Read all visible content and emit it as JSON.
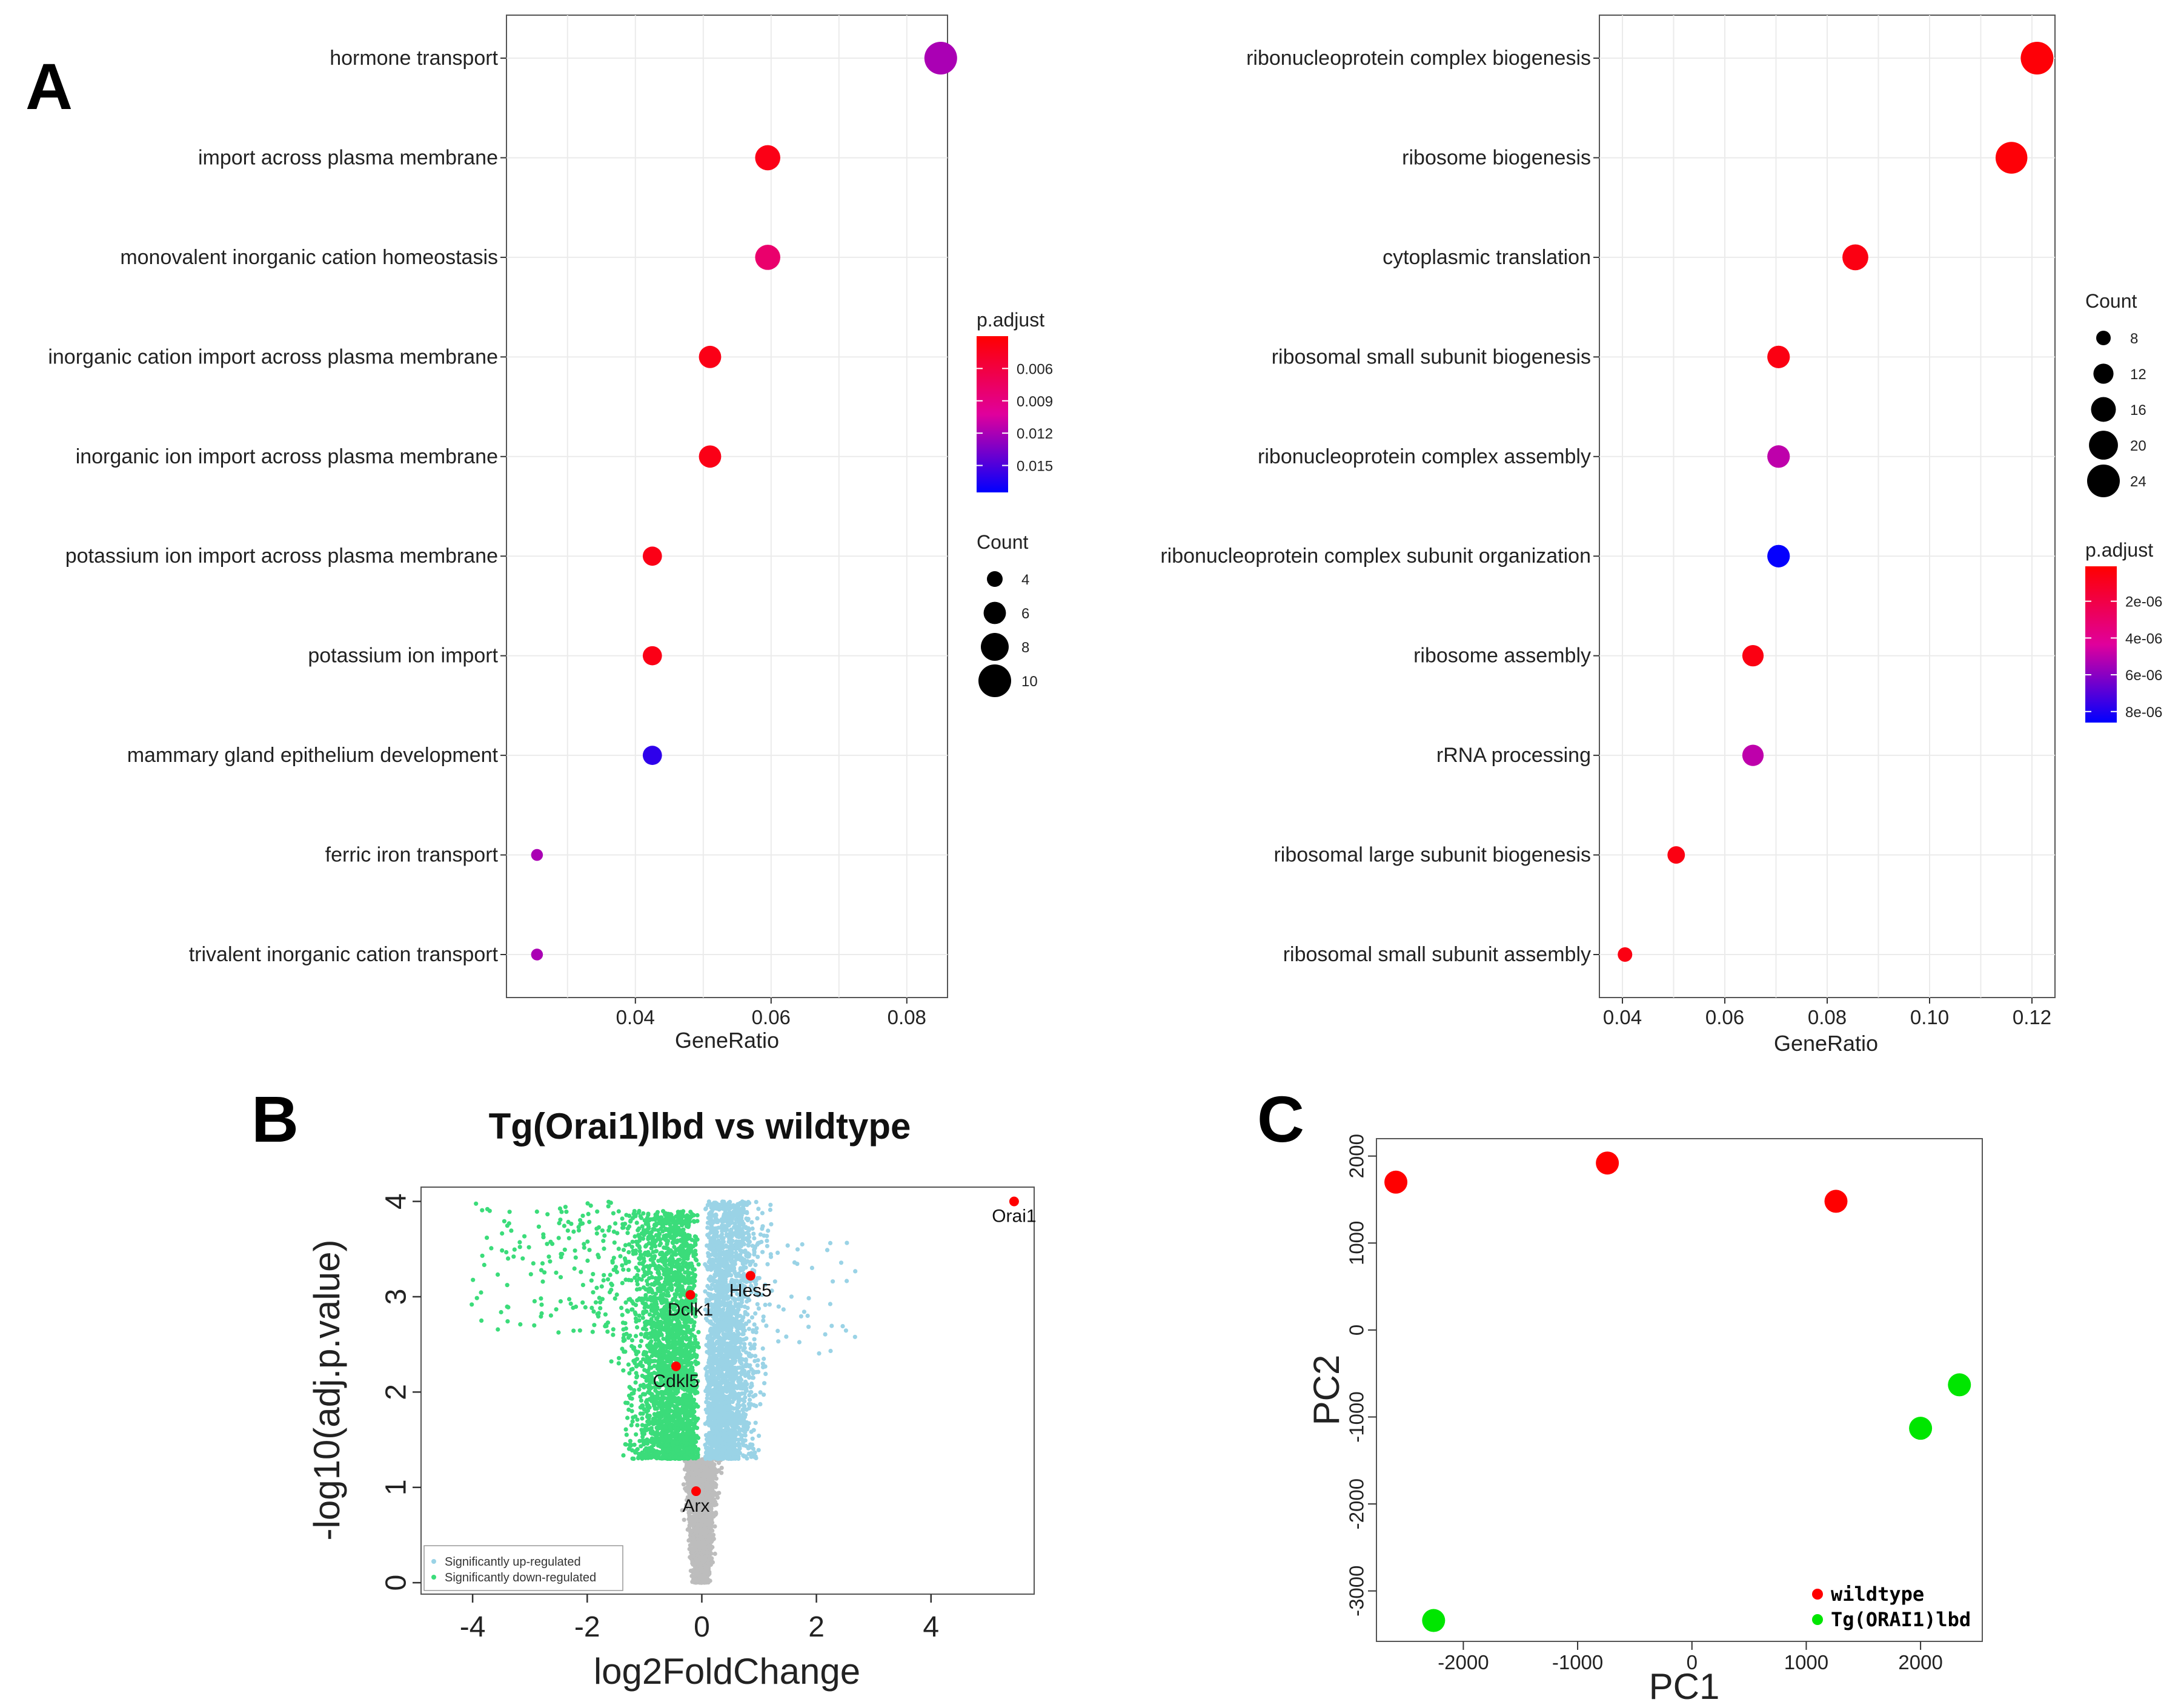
{
  "panels": {
    "A": "A",
    "B": "B",
    "C": "C"
  },
  "colors": {
    "high": "#ff0000",
    "mid": "#e0009c",
    "low": "#0000ff",
    "up": "#9ad3e6",
    "down": "#3bdc7a",
    "ns": "#bdbdbd",
    "wildtype": "#ff0000",
    "tg": "#00e600"
  },
  "chart_data": [
    {
      "type": "scatter",
      "panel": "A-left",
      "xlabel": "GeneRatio",
      "xticks": [
        0.04,
        0.06,
        0.08
      ],
      "xlim": [
        0.021,
        0.086
      ],
      "terms": [
        "hormone transport",
        "import across plasma membrane",
        "monovalent inorganic cation homeostasis",
        "inorganic cation import across plasma membrane",
        "inorganic ion import across plasma membrane",
        "potassium ion import across plasma membrane",
        "potassium ion import",
        "mammary gland epithelium development",
        "ferric iron transport",
        "trivalent inorganic cation transport"
      ],
      "gene_ratio": [
        0.085,
        0.0595,
        0.0595,
        0.051,
        0.051,
        0.0425,
        0.0425,
        0.0425,
        0.0255,
        0.0255
      ],
      "count": [
        10,
        7,
        7,
        6,
        6,
        5,
        5,
        5,
        3,
        3
      ],
      "p_adjust": [
        0.012,
        0.004,
        0.008,
        0.004,
        0.004,
        0.004,
        0.004,
        0.016,
        0.012,
        0.012
      ],
      "legend": {
        "p_adjust_title": "p.adjust",
        "p_adjust_ticks": [
          "0.006",
          "0.009",
          "0.012",
          "0.015"
        ],
        "p_adjust_range": [
          0.003,
          0.0175
        ],
        "p_adjust_tick_values": [
          0.006,
          0.009,
          0.012,
          0.015
        ],
        "count_title": "Count",
        "count_ticks": [
          "4",
          "6",
          "8",
          "10"
        ],
        "count_values": [
          4,
          6,
          8,
          10
        ]
      }
    },
    {
      "type": "scatter",
      "panel": "A-right",
      "xlabel": "GeneRatio",
      "xticks": [
        0.04,
        0.06,
        0.08,
        0.1,
        0.12
      ],
      "xtick_labels": [
        "0.04",
        "0.06",
        "0.08",
        "0.10",
        "0.12"
      ],
      "xlim": [
        0.0355,
        0.1245
      ],
      "terms": [
        "ribonucleoprotein complex biogenesis",
        "ribosome biogenesis",
        "cytoplasmic translation",
        "ribosomal small subunit biogenesis",
        "ribonucleoprotein complex assembly",
        "ribonucleoprotein complex subunit organization",
        "ribosome assembly",
        "rRNA processing",
        "ribosomal large subunit biogenesis",
        "ribosomal small subunit assembly"
      ],
      "gene_ratio": [
        0.121,
        0.116,
        0.0855,
        0.0705,
        0.0705,
        0.0705,
        0.0655,
        0.0655,
        0.0505,
        0.0405
      ],
      "count": [
        24,
        23,
        17,
        14,
        14,
        14,
        13,
        13,
        10,
        8
      ],
      "p_adjust": [
        3e-07,
        3e-07,
        6e-07,
        6e-07,
        5e-06,
        8.5e-06,
        6e-07,
        5e-06,
        6e-07,
        6e-07
      ],
      "legend": {
        "count_title": "Count",
        "count_ticks": [
          "8",
          "12",
          "16",
          "20",
          "24"
        ],
        "count_values": [
          8,
          12,
          16,
          20,
          24
        ],
        "p_adjust_title": "p.adjust",
        "p_adjust_ticks": [
          "2e-06",
          "4e-06",
          "6e-06",
          "8e-06"
        ],
        "p_adjust_range": [
          1e-07,
          8.6e-06
        ],
        "p_adjust_tick_values": [
          2e-06,
          4e-06,
          6e-06,
          8e-06
        ]
      }
    },
    {
      "type": "scatter",
      "panel": "B",
      "title": "Tg(Orai1)lbd vs wildtype",
      "xlabel": "log2FoldChange",
      "ylabel": "-log10(adj.p.value)",
      "xticks": [
        -4,
        -2,
        0,
        2,
        4
      ],
      "xtick_labels": [
        "-4",
        "-2",
        "0",
        "2",
        "4"
      ],
      "yticks": [
        0,
        1,
        2,
        3,
        4
      ],
      "yticks_labels": [
        "0",
        "1",
        "2",
        "3",
        "4"
      ],
      "xlim": [
        -4.9,
        5.8
      ],
      "ylim": [
        -0.12,
        4.15
      ],
      "highlighted_genes": [
        {
          "label": "Orai1",
          "x": 5.45,
          "y": 4.0
        },
        {
          "label": "Hes5",
          "x": 0.85,
          "y": 3.22
        },
        {
          "label": "Dclk1",
          "x": -0.2,
          "y": 3.02
        },
        {
          "label": "Cdkl5",
          "x": -0.45,
          "y": 2.27
        },
        {
          "label": "Arx",
          "x": -0.1,
          "y": 0.96
        }
      ],
      "legend": [
        "Significantly up-regulated",
        "Significantly down-regulated"
      ]
    },
    {
      "type": "scatter",
      "panel": "C",
      "xlabel": "PC1",
      "ylabel": "PC2",
      "xticks": [
        -2000,
        -1000,
        0,
        1000,
        2000
      ],
      "xtick_labels": [
        "-2000",
        "-1000",
        "0",
        "1000",
        "2000"
      ],
      "yticks": [
        -3000,
        -2000,
        -1000,
        0,
        1000,
        2000
      ],
      "ytick_labels": [
        "-3000",
        "-2000",
        "-1000",
        "0",
        "1000",
        "2000"
      ],
      "xlim": [
        -2760,
        2540
      ],
      "ylim": [
        -3580,
        2200
      ],
      "series": [
        {
          "name": "wildtype",
          "points": [
            [
              -2590,
              1700
            ],
            [
              -740,
              1920
            ],
            [
              1260,
              1480
            ]
          ]
        },
        {
          "name": "Tg(ORAI1)lbd",
          "points": [
            [
              -2260,
              -3340
            ],
            [
              2000,
              -1130
            ],
            [
              2340,
              -630
            ]
          ]
        }
      ]
    }
  ]
}
